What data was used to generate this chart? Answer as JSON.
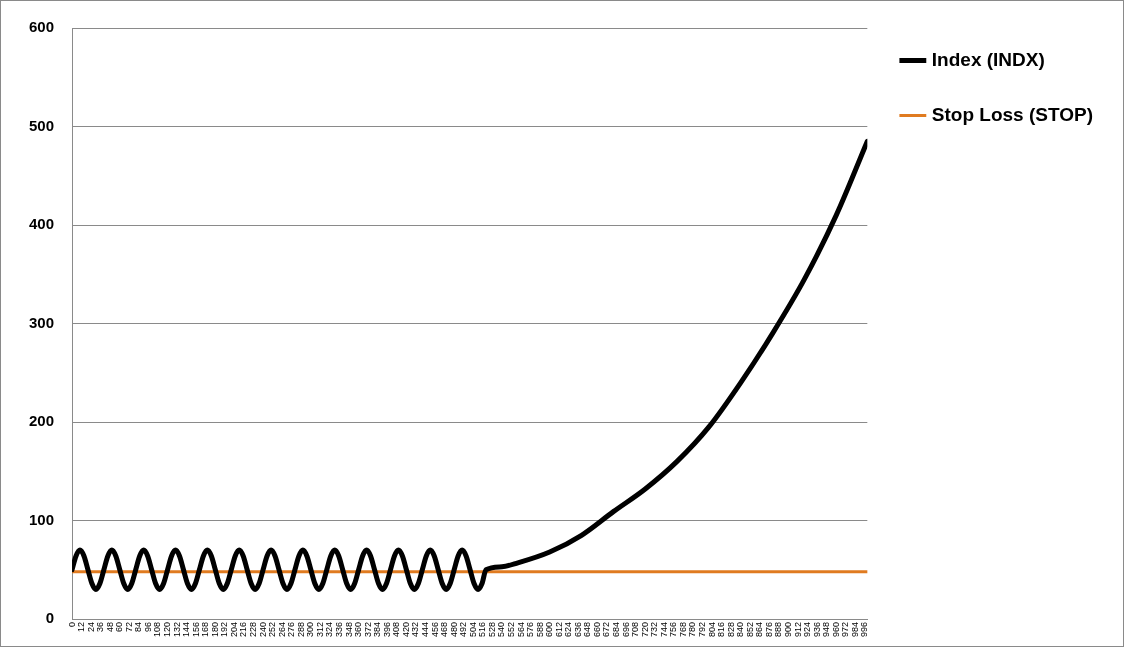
{
  "chart_data": {
    "type": "line",
    "xlim": [
      0,
      999
    ],
    "ylim": [
      0,
      600
    ],
    "yticks": [
      0,
      100,
      200,
      300,
      400,
      500,
      600
    ],
    "xticks": [
      0,
      12,
      24,
      36,
      48,
      60,
      72,
      84,
      96,
      108,
      120,
      132,
      144,
      156,
      168,
      180,
      192,
      204,
      216,
      228,
      240,
      252,
      264,
      276,
      288,
      300,
      312,
      324,
      336,
      348,
      360,
      372,
      384,
      396,
      408,
      420,
      432,
      444,
      456,
      468,
      480,
      492,
      504,
      516,
      528,
      540,
      552,
      564,
      576,
      588,
      600,
      612,
      624,
      636,
      648,
      660,
      672,
      684,
      696,
      708,
      720,
      732,
      744,
      756,
      768,
      780,
      792,
      804,
      816,
      828,
      840,
      852,
      864,
      876,
      888,
      900,
      912,
      924,
      936,
      948,
      960,
      972,
      984,
      996
    ],
    "grid": "y",
    "legend": "right",
    "marker": "none",
    "line_style": "solid",
    "series": [
      {
        "name": "Index (INDX)",
        "color": "#000000",
        "x": [
          0,
          5,
          10,
          15,
          20,
          25,
          30,
          35,
          40,
          45,
          50,
          55,
          60,
          65,
          70,
          75,
          80,
          85,
          90,
          95,
          100,
          105,
          110,
          115,
          120,
          125,
          130,
          135,
          140,
          145,
          150,
          155,
          160,
          165,
          170,
          175,
          180,
          185,
          190,
          195,
          200,
          205,
          210,
          215,
          220,
          225,
          230,
          235,
          240,
          245,
          250,
          255,
          260,
          265,
          270,
          275,
          280,
          285,
          290,
          295,
          300,
          305,
          310,
          315,
          320,
          325,
          330,
          335,
          340,
          345,
          350,
          355,
          360,
          365,
          370,
          375,
          380,
          385,
          390,
          395,
          400,
          405,
          410,
          415,
          420,
          425,
          430,
          435,
          440,
          445,
          450,
          455,
          460,
          465,
          470,
          475,
          480,
          485,
          490,
          495,
          500,
          505,
          510,
          515,
          520,
          540,
          560,
          600,
          640,
          680,
          720,
          760,
          800,
          840,
          880,
          920,
          960,
          999
        ],
        "values": [
          50,
          64,
          70,
          64,
          50,
          36,
          30,
          36,
          50,
          64,
          70,
          64,
          50,
          36,
          30,
          36,
          50,
          64,
          70,
          64,
          50,
          36,
          30,
          36,
          50,
          64,
          70,
          64,
          50,
          36,
          30,
          36,
          50,
          64,
          70,
          64,
          50,
          36,
          30,
          36,
          50,
          64,
          70,
          64,
          50,
          36,
          30,
          36,
          50,
          64,
          70,
          64,
          50,
          36,
          30,
          36,
          50,
          64,
          70,
          64,
          50,
          36,
          30,
          36,
          50,
          64,
          70,
          64,
          50,
          36,
          30,
          36,
          50,
          64,
          70,
          64,
          50,
          36,
          30,
          36,
          50,
          64,
          70,
          64,
          50,
          36,
          30,
          36,
          50,
          64,
          70,
          64,
          50,
          36,
          30,
          36,
          50,
          64,
          70,
          64,
          50,
          36,
          30,
          36,
          50,
          53,
          57,
          68,
          85,
          109,
          132,
          160,
          195,
          240,
          290,
          345,
          410,
          485
        ]
      },
      {
        "name": "Stop Loss (STOP)",
        "color": "#e07b20",
        "x": [
          0,
          999
        ],
        "values": [
          48,
          48
        ]
      }
    ]
  }
}
